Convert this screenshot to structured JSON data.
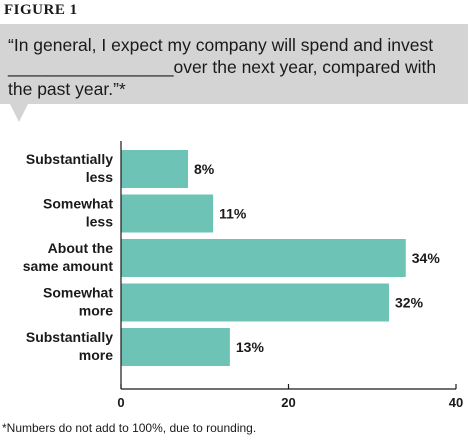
{
  "figure_label": "FIGURE 1",
  "quote": {
    "line1": "“In general, I expect my company will spend and invest",
    "blank": "_________________",
    "line2_rest": "over the next year, compared with",
    "line3": "the past year.”*"
  },
  "footnote": "*Numbers do not add to 100%, due to rounding.",
  "colors": {
    "bar": "#6dc3b6",
    "callout": "#d4d4d4"
  },
  "chart_data": {
    "type": "bar",
    "orientation": "horizontal",
    "title": "",
    "xlabel": "",
    "ylabel": "",
    "categories": [
      [
        "Substantially",
        "less"
      ],
      [
        "Somewhat",
        "less"
      ],
      [
        "About the",
        "same amount"
      ],
      [
        "Somewhat",
        "more"
      ],
      [
        "Substantially",
        "more"
      ]
    ],
    "values": [
      8,
      11,
      34,
      32,
      13
    ],
    "value_labels": [
      "8%",
      "11%",
      "34%",
      "32%",
      "13%"
    ],
    "xlim": [
      0,
      40
    ],
    "xticks": [
      0,
      20,
      40
    ],
    "grid": false
  }
}
